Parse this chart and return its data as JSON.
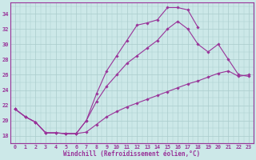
{
  "xlabel": "Windchill (Refroidissement éolien,°C)",
  "bg_color": "#cce8e8",
  "grid_color": "#aacccc",
  "line_color": "#993399",
  "xlim": [
    -0.5,
    23.5
  ],
  "ylim": [
    17.0,
    35.5
  ],
  "yticks": [
    18,
    20,
    22,
    24,
    26,
    28,
    30,
    32,
    34
  ],
  "xticks": [
    0,
    1,
    2,
    3,
    4,
    5,
    6,
    7,
    8,
    9,
    10,
    11,
    12,
    13,
    14,
    15,
    16,
    17,
    18,
    19,
    20,
    21,
    22,
    23
  ],
  "line1_x": [
    0,
    1,
    2,
    3,
    4,
    5,
    6,
    7,
    8,
    9,
    10,
    11,
    12,
    13,
    14,
    15,
    16,
    17,
    18
  ],
  "line1_y": [
    21.5,
    20.5,
    19.8,
    18.4,
    18.4,
    18.3,
    18.3,
    20.0,
    23.5,
    26.5,
    28.5,
    30.5,
    32.5,
    32.8,
    33.2,
    34.8,
    34.8,
    34.5,
    32.2
  ],
  "line2_x": [
    0,
    1,
    2,
    3,
    4,
    5,
    6,
    7,
    8,
    9,
    10,
    11,
    12,
    13,
    14,
    15,
    16,
    17,
    18,
    19,
    20,
    21,
    22,
    23
  ],
  "line2_y": [
    21.5,
    20.5,
    19.8,
    18.4,
    18.4,
    18.3,
    18.3,
    20.0,
    22.5,
    24.5,
    26.0,
    27.5,
    28.5,
    29.5,
    30.5,
    32.0,
    33.0,
    32.0,
    30.0,
    29.0,
    30.0,
    28.0,
    26.0,
    25.8
  ],
  "line3_x": [
    0,
    1,
    2,
    3,
    4,
    5,
    6,
    7,
    8,
    9,
    10,
    11,
    12,
    13,
    14,
    15,
    16,
    17,
    18,
    19,
    20,
    21,
    22,
    23
  ],
  "line3_y": [
    21.5,
    20.5,
    19.8,
    18.4,
    18.4,
    18.3,
    18.3,
    18.5,
    19.5,
    20.5,
    21.2,
    21.8,
    22.3,
    22.8,
    23.3,
    23.8,
    24.3,
    24.8,
    25.2,
    25.7,
    26.2,
    26.5,
    25.8,
    26.0
  ]
}
